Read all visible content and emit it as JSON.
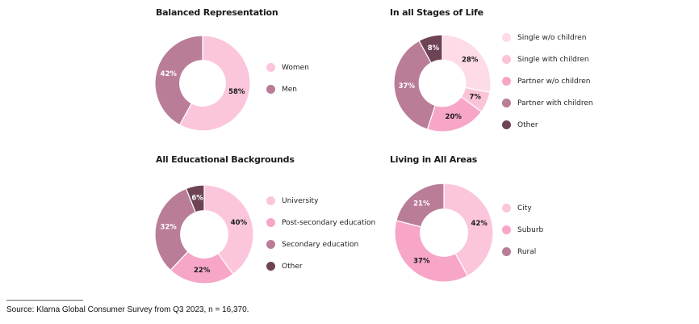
{
  "chart_data": [
    {
      "type": "pie",
      "title": "Balanced Representation",
      "slices": [
        {
          "label": "Women",
          "value": 58,
          "value_label": "58%",
          "color": "#fbc6dc"
        },
        {
          "label": "Men",
          "value": 42,
          "value_label": "42%",
          "color": "#b97d98"
        }
      ]
    },
    {
      "type": "pie",
      "title": "In all Stages of Life",
      "slices": [
        {
          "label": "Single w/o children",
          "value": 28,
          "value_label": "28%",
          "color": "#fddbe7"
        },
        {
          "label": "Single with children",
          "value": 7,
          "value_label": "7%",
          "color": "#fbc3d8"
        },
        {
          "label": "Partner w/o children",
          "value": 20,
          "value_label": "20%",
          "color": "#f7a6c8"
        },
        {
          "label": "Partner with children",
          "value": 37,
          "value_label": "37%",
          "color": "#b97d98"
        },
        {
          "label": "Other",
          "value": 8,
          "value_label": "8%",
          "color": "#6e4356"
        }
      ]
    },
    {
      "type": "pie",
      "title": "All Educational Backgrounds",
      "slices": [
        {
          "label": "University",
          "value": 40,
          "value_label": "40%",
          "color": "#fbc6dc"
        },
        {
          "label": "Post-secondary education",
          "value": 22,
          "value_label": "22%",
          "color": "#f7a6c8"
        },
        {
          "label": "Secondary education",
          "value": 32,
          "value_label": "32%",
          "color": "#b97d98"
        },
        {
          "label": "Other",
          "value": 6,
          "value_label": "6%",
          "color": "#6e4356"
        }
      ]
    },
    {
      "type": "pie",
      "title": "Living in All Areas",
      "slices": [
        {
          "label": "City",
          "value": 42,
          "value_label": "42%",
          "color": "#fbc6dc"
        },
        {
          "label": "Suburb",
          "value": 37,
          "value_label": "37%",
          "color": "#f7a6c8"
        },
        {
          "label": "Rural",
          "value": 21,
          "value_label": "21%",
          "color": "#b97d98"
        }
      ]
    }
  ],
  "source": "Source: Klarna Global Consumer Survey from Q3 2023, n = 16,370."
}
